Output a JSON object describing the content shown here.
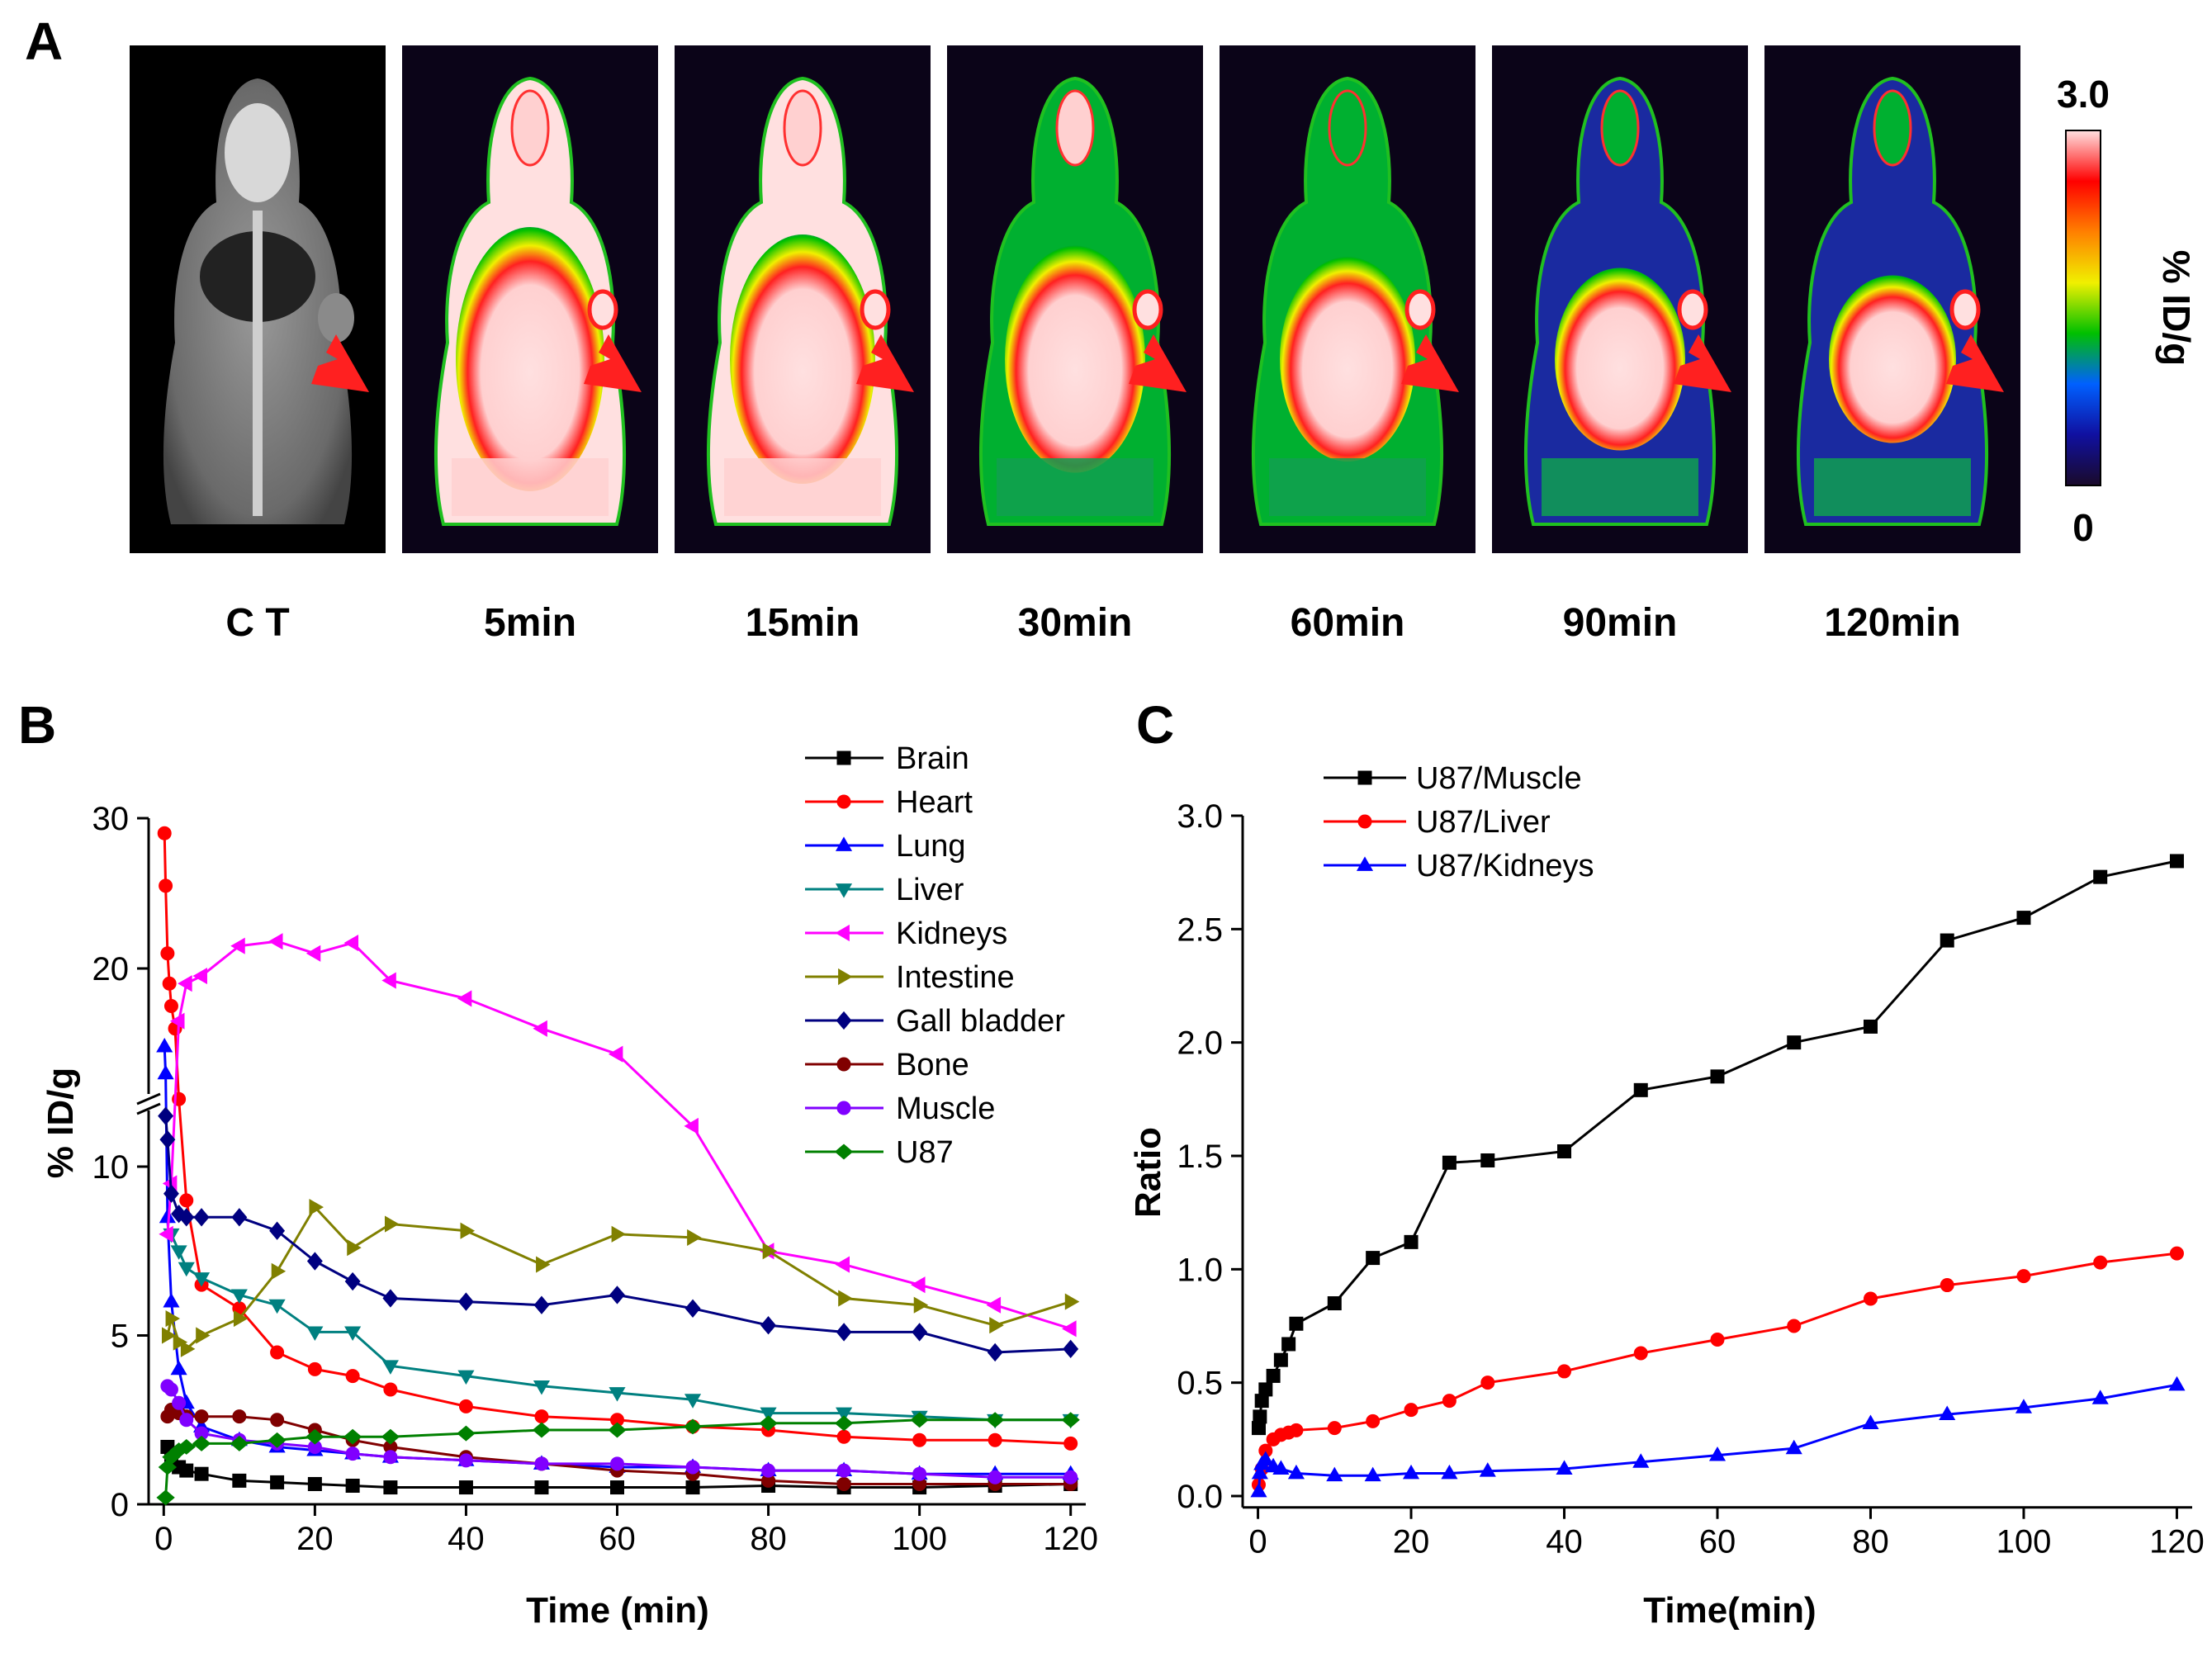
{
  "panel_a": {
    "letter": "A",
    "images": [
      {
        "label": "C T",
        "kind": "ct"
      },
      {
        "label": "5min",
        "kind": "pet",
        "level": 1.0
      },
      {
        "label": "15min",
        "kind": "pet",
        "level": 0.9
      },
      {
        "label": "30min",
        "kind": "pet",
        "level": 0.75
      },
      {
        "label": "60min",
        "kind": "pet",
        "level": 0.6
      },
      {
        "label": "90min",
        "kind": "pet",
        "level": 0.45
      },
      {
        "label": "120min",
        "kind": "pet",
        "level": 0.35
      }
    ],
    "colorbar": {
      "max_label": "3.0",
      "min_label": "0",
      "unit_label": "% ID/g",
      "colors": [
        "#1a0a2a",
        "#1010a0",
        "#0060ff",
        "#00c000",
        "#f0f000",
        "#ff8000",
        "#ff0000",
        "#ffe0e0"
      ]
    },
    "arrow_color": "#ff2020"
  },
  "chart_data": [
    {
      "panel": "B",
      "type": "line",
      "xlabel": "Time (min)",
      "ylabel": "% ID/g",
      "xlim": [
        -2,
        122
      ],
      "ylim_lower": [
        0,
        12
      ],
      "ylim_upper": [
        13,
        30
      ],
      "x_ticks": [
        0,
        20,
        40,
        60,
        80,
        100,
        120
      ],
      "y_ticks": [
        0,
        5,
        10,
        20,
        30
      ],
      "axis_break": true,
      "legend_position": "top-right",
      "series": [
        {
          "name": "Brain",
          "color": "#000000",
          "marker": "square",
          "x": [
            0.5,
            1,
            2,
            3,
            5,
            10,
            15,
            20,
            25,
            30,
            40,
            50,
            60,
            70,
            80,
            90,
            100,
            110,
            120
          ],
          "y": [
            1.7,
            1.4,
            1.1,
            1.0,
            0.9,
            0.7,
            0.65,
            0.6,
            0.55,
            0.5,
            0.5,
            0.5,
            0.5,
            0.5,
            0.55,
            0.5,
            0.5,
            0.55,
            0.6
          ]
        },
        {
          "name": "Heart",
          "color": "#ff0000",
          "marker": "circle",
          "x": [
            0.1,
            0.25,
            0.5,
            0.75,
            1,
            1.5,
            2,
            3,
            5,
            10,
            15,
            20,
            25,
            30,
            40,
            50,
            60,
            70,
            80,
            90,
            100,
            110,
            120
          ],
          "y": [
            29,
            25.5,
            21,
            19,
            17.5,
            16,
            12,
            9,
            6.5,
            5.8,
            4.5,
            4.0,
            3.8,
            3.4,
            2.9,
            2.6,
            2.5,
            2.3,
            2.2,
            2.0,
            1.9,
            1.9,
            1.8
          ]
        },
        {
          "name": "Lung",
          "color": "#0000ff",
          "marker": "triangle-up",
          "x": [
            0.1,
            0.25,
            0.5,
            1,
            2,
            3,
            5,
            10,
            15,
            20,
            25,
            30,
            40,
            50,
            60,
            70,
            80,
            90,
            100,
            110,
            120
          ],
          "y": [
            14.8,
            13.0,
            8.5,
            6.0,
            4.0,
            3.0,
            2.3,
            1.9,
            1.7,
            1.6,
            1.5,
            1.4,
            1.3,
            1.2,
            1.1,
            1.1,
            1.0,
            1.0,
            0.9,
            0.9,
            0.9
          ]
        },
        {
          "name": "Liver",
          "color": "#008080",
          "marker": "triangle-down",
          "x": [
            1,
            2,
            3,
            5,
            10,
            15,
            20,
            25,
            30,
            40,
            50,
            60,
            70,
            80,
            90,
            100,
            110,
            120
          ],
          "y": [
            8.0,
            7.5,
            7.0,
            6.7,
            6.2,
            5.9,
            5.1,
            5.1,
            4.1,
            3.8,
            3.5,
            3.3,
            3.1,
            2.7,
            2.7,
            2.6,
            2.5,
            2.5
          ]
        },
        {
          "name": "Kidneys",
          "color": "#ff00ff",
          "marker": "triangle-left",
          "x": [
            0.5,
            1,
            2,
            3,
            5,
            10,
            15,
            20,
            25,
            30,
            40,
            50,
            60,
            70,
            80,
            90,
            100,
            110,
            120
          ],
          "y": [
            8.0,
            9.5,
            16.5,
            19,
            19.5,
            21.5,
            21.8,
            21,
            21.7,
            19.2,
            18,
            16,
            14.3,
            11.2,
            7.5,
            7.1,
            6.5,
            5.9,
            5.2
          ]
        },
        {
          "name": "Intestine",
          "color": "#808000",
          "marker": "triangle-right",
          "x": [
            0.5,
            1,
            2,
            3,
            5,
            10,
            15,
            20,
            25,
            30,
            40,
            50,
            60,
            70,
            80,
            90,
            100,
            110,
            120
          ],
          "y": [
            5.0,
            5.5,
            4.8,
            4.6,
            5.0,
            5.5,
            6.9,
            8.8,
            7.6,
            8.3,
            8.1,
            7.1,
            8.0,
            7.9,
            7.5,
            6.1,
            5.9,
            5.3,
            6.0
          ]
        },
        {
          "name": "Gall bladder",
          "color": "#000080",
          "marker": "diamond",
          "x": [
            0.25,
            0.5,
            1,
            2,
            3,
            5,
            10,
            15,
            20,
            25,
            30,
            40,
            50,
            60,
            70,
            80,
            90,
            100,
            110,
            120
          ],
          "y": [
            11.5,
            10.8,
            9.2,
            8.6,
            8.5,
            8.5,
            8.5,
            8.1,
            7.2,
            6.6,
            6.1,
            6.0,
            5.9,
            6.2,
            5.8,
            5.3,
            5.1,
            5.1,
            4.5,
            4.6
          ]
        },
        {
          "name": "Bone",
          "color": "#800000",
          "marker": "circle",
          "x": [
            0.5,
            1,
            2,
            3,
            5,
            10,
            15,
            20,
            25,
            30,
            40,
            50,
            60,
            70,
            80,
            90,
            100,
            110,
            120
          ],
          "y": [
            2.6,
            2.8,
            2.7,
            2.6,
            2.6,
            2.6,
            2.5,
            2.2,
            1.9,
            1.7,
            1.4,
            1.2,
            1.0,
            0.9,
            0.7,
            0.6,
            0.6,
            0.6,
            0.6
          ]
        },
        {
          "name": "Muscle",
          "color": "#8000ff",
          "marker": "circle",
          "x": [
            0.5,
            1,
            2,
            3,
            5,
            10,
            15,
            20,
            25,
            30,
            40,
            50,
            60,
            70,
            80,
            90,
            100,
            110,
            120
          ],
          "y": [
            3.5,
            3.4,
            3.0,
            2.5,
            2.1,
            1.9,
            1.8,
            1.7,
            1.5,
            1.4,
            1.3,
            1.2,
            1.2,
            1.1,
            1.0,
            1.0,
            0.9,
            0.8,
            0.8
          ]
        },
        {
          "name": "U87",
          "color": "#008000",
          "marker": "diamond-left",
          "x": [
            0.25,
            0.5,
            1,
            2,
            3,
            5,
            10,
            15,
            20,
            25,
            30,
            40,
            50,
            60,
            70,
            80,
            90,
            100,
            110,
            120
          ],
          "y": [
            0.2,
            1.1,
            1.4,
            1.6,
            1.7,
            1.8,
            1.8,
            1.9,
            2.0,
            2.0,
            2.0,
            2.1,
            2.2,
            2.2,
            2.3,
            2.4,
            2.4,
            2.5,
            2.5,
            2.5
          ]
        }
      ]
    },
    {
      "panel": "C",
      "type": "line",
      "xlabel": "Time(min)",
      "ylabel": "Ratio",
      "xlim": [
        -2,
        122
      ],
      "ylim": [
        -0.05,
        3.0
      ],
      "x_ticks": [
        0,
        20,
        40,
        60,
        80,
        100,
        120
      ],
      "y_ticks": [
        "0.0",
        "0.5",
        "1.0",
        "1.5",
        "2.0",
        "2.5",
        "3.0"
      ],
      "legend_position": "top-left",
      "series": [
        {
          "name": "U87/Muscle",
          "color": "#000000",
          "marker": "square",
          "x": [
            0.1,
            0.25,
            0.5,
            1,
            2,
            3,
            4,
            5,
            10,
            15,
            20,
            25,
            30,
            40,
            50,
            60,
            70,
            80,
            90,
            100,
            110,
            120
          ],
          "y": [
            0.3,
            0.35,
            0.42,
            0.47,
            0.53,
            0.6,
            0.67,
            0.76,
            0.85,
            1.05,
            1.12,
            1.47,
            1.48,
            1.52,
            1.79,
            1.85,
            2.0,
            2.07,
            2.45,
            2.55,
            2.73,
            2.8
          ]
        },
        {
          "name": "U87/Liver",
          "color": "#ff0000",
          "marker": "circle",
          "x": [
            0.1,
            0.5,
            1,
            2,
            3,
            4,
            5,
            10,
            15,
            20,
            25,
            30,
            40,
            50,
            60,
            70,
            80,
            90,
            100,
            110,
            120
          ],
          "y": [
            0.05,
            0.12,
            0.2,
            0.25,
            0.27,
            0.28,
            0.29,
            0.3,
            0.33,
            0.38,
            0.42,
            0.5,
            0.55,
            0.63,
            0.69,
            0.75,
            0.87,
            0.93,
            0.97,
            1.03,
            1.07
          ]
        },
        {
          "name": "U87/Kidneys",
          "color": "#0000ff",
          "marker": "triangle-up",
          "x": [
            0.1,
            0.25,
            0.5,
            1,
            2,
            3,
            5,
            10,
            15,
            20,
            25,
            30,
            40,
            50,
            60,
            70,
            80,
            90,
            100,
            110,
            120
          ],
          "y": [
            0.02,
            0.1,
            0.14,
            0.16,
            0.13,
            0.12,
            0.1,
            0.09,
            0.09,
            0.1,
            0.1,
            0.11,
            0.12,
            0.15,
            0.18,
            0.21,
            0.32,
            0.36,
            0.39,
            0.43,
            0.49
          ]
        }
      ]
    }
  ]
}
